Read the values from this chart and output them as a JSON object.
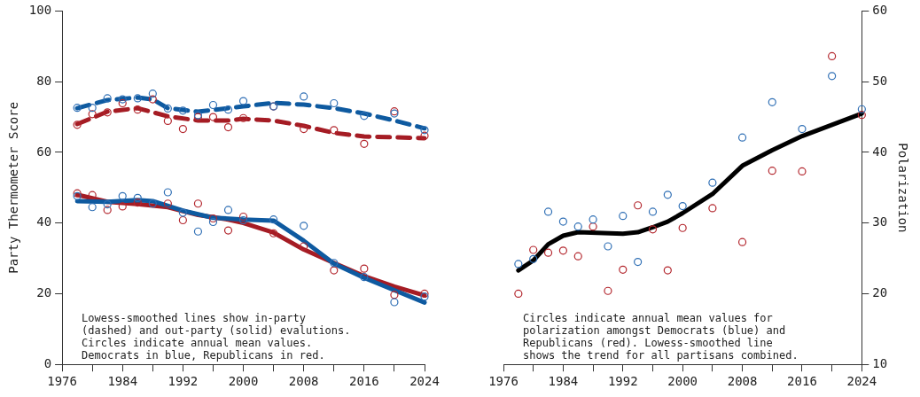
{
  "chart_data": [
    {
      "type": "scatter",
      "ylabel": "Party Thermometer Score",
      "xlim": [
        1976,
        2024
      ],
      "ylim": [
        0,
        100
      ],
      "xticks": [
        1976,
        {
          "value": 1980,
          "label": null
        },
        1984,
        {
          "value": 1988,
          "label": null
        },
        1992,
        {
          "value": 1996,
          "label": null
        },
        2000,
        {
          "value": 2004,
          "label": null
        },
        2008,
        {
          "value": 2012,
          "label": null
        },
        2016,
        {
          "value": 2020,
          "label": null
        },
        2024
      ],
      "yticks": [
        0,
        20,
        40,
        60,
        80,
        100
      ],
      "grid": false,
      "legend": false,
      "x": [
        1978,
        1980,
        1982,
        1984,
        1986,
        1988,
        1990,
        1992,
        1994,
        1996,
        1998,
        2000,
        2004,
        2008,
        2012,
        2016,
        2020,
        2024
      ],
      "series": [
        {
          "type": "scatter",
          "marker": "circle",
          "color": "#2f6fb5",
          "values": [
            72.6,
            72.6,
            75.3,
            75,
            75.3,
            76.6,
            72.4,
            71.8,
            70.5,
            73.4,
            72.1,
            74.5,
            73,
            75.8,
            73.9,
            70.3,
            71,
            66.3
          ]
        },
        {
          "type": "scatter",
          "marker": "circle",
          "color": "#b3262d",
          "values": [
            67.8,
            70.8,
            71.3,
            73.9,
            72.1,
            75,
            68.9,
            66.6,
            70,
            70,
            67.1,
            69.7,
            73,
            66.6,
            66.3,
            62.4,
            71.6,
            64.7
          ]
        },
        {
          "type": "scatter",
          "marker": "circle",
          "color": "#2f6fb5",
          "values": [
            47.6,
            44.5,
            45.3,
            47.6,
            47.1,
            45.5,
            48.7,
            42.9,
            37.6,
            40.3,
            43.7,
            40.8,
            41,
            39.2,
            28.7,
            24.7,
            17.6,
            19.2
          ]
        },
        {
          "type": "scatter",
          "marker": "circle",
          "color": "#b3262d",
          "values": [
            48.4,
            47.9,
            43.7,
            44.7,
            45.8,
            null,
            45.5,
            40.8,
            45.5,
            41.3,
            37.9,
            41.8,
            37.1,
            33.4,
            26.6,
            27.1,
            19.7,
            20
          ]
        },
        {
          "type": "line",
          "marker": "none",
          "line_style": "dashed",
          "color": "#0e5aa0",
          "x": [
            1978,
            1982,
            1986,
            1988,
            1990,
            1994,
            2000,
            2004,
            2008,
            2012,
            2016,
            2020,
            2024
          ],
          "values": [
            72.5,
            74.8,
            75.5,
            75,
            72.5,
            71.5,
            73,
            74,
            73.5,
            72.5,
            71,
            69,
            66.8
          ]
        },
        {
          "type": "line",
          "marker": "none",
          "line_style": "dashed",
          "color": "#a51c24",
          "x": [
            1978,
            1982,
            1986,
            1990,
            1994,
            1998,
            2000,
            2004,
            2008,
            2012,
            2016,
            2024
          ],
          "values": [
            68,
            71.5,
            72.5,
            70.2,
            69,
            69,
            69.5,
            69,
            67.5,
            65.5,
            64.5,
            64
          ]
        },
        {
          "type": "line",
          "marker": "none",
          "line_style": "solid",
          "color": "#0e5aa0",
          "x": [
            1978,
            1982,
            1986,
            1988,
            1992,
            1996,
            2000,
            2004,
            2008,
            2012,
            2016,
            2020,
            2024
          ],
          "values": [
            46.2,
            46,
            46.5,
            46.2,
            43.5,
            41.5,
            41,
            40.7,
            35,
            28.5,
            24.5,
            21,
            17.5
          ]
        },
        {
          "type": "line",
          "marker": "none",
          "line_style": "solid",
          "color": "#a51c24",
          "x": [
            1978,
            1982,
            1986,
            1990,
            1994,
            1998,
            2000,
            2004,
            2008,
            2012,
            2016,
            2020,
            2024
          ],
          "values": [
            48,
            46,
            45.4,
            44.5,
            42.3,
            41,
            40,
            37.3,
            32.5,
            28.7,
            25,
            22,
            19.5
          ]
        }
      ],
      "annotations": [
        "Lowess-smoothed lines show in-party\n(dashed) and out-party (solid) evalutions.\nCircles indicate annual mean values.\nDemocrats in blue, Republicans in red."
      ]
    },
    {
      "type": "scatter",
      "y2label": "Polarization",
      "xlim": [
        1976,
        2024
      ],
      "y2lim": [
        10,
        60
      ],
      "xticks": [
        1976,
        {
          "value": 1980,
          "label": null
        },
        1984,
        {
          "value": 1988,
          "label": null
        },
        1992,
        {
          "value": 1996,
          "label": null
        },
        2000,
        {
          "value": 2004,
          "label": null
        },
        2008,
        {
          "value": 2012,
          "label": null
        },
        2016,
        {
          "value": 2020,
          "label": null
        },
        2024
      ],
      "y2ticks": [
        10,
        20,
        30,
        40,
        50,
        60
      ],
      "grid": false,
      "legend": false,
      "x": [
        1978,
        1980,
        1982,
        1984,
        1986,
        1988,
        1990,
        1992,
        1994,
        1996,
        1998,
        2000,
        2004,
        2008,
        2012,
        2016,
        2020,
        2024
      ],
      "series": [
        {
          "type": "scatter",
          "axis": "y2",
          "marker": "circle",
          "color": "#2f6fb5",
          "values": [
            24.2,
            24.9,
            31.6,
            30.2,
            29.5,
            30.5,
            26.7,
            31,
            24.5,
            31.6,
            34,
            32.4,
            35.7,
            42.1,
            47.1,
            43.3,
            50.8,
            46.1
          ]
        },
        {
          "type": "scatter",
          "axis": "y2",
          "marker": "circle",
          "color": "#b3262d",
          "values": [
            20,
            26.2,
            25.8,
            26.1,
            25.3,
            29.5,
            20.4,
            23.4,
            32.5,
            29.1,
            23.3,
            29.3,
            32.1,
            27.3,
            37.4,
            37.3,
            53.6,
            45.3
          ]
        },
        {
          "type": "line",
          "axis": "y2",
          "marker": "none",
          "line_style": "solid",
          "color": "#000000",
          "x": [
            1978,
            1980,
            1982,
            1984,
            1986,
            1992,
            1994,
            1996,
            1998,
            2000,
            2004,
            2008,
            2012,
            2016,
            2020,
            2024
          ],
          "values": [
            23.3,
            24.7,
            27,
            28.2,
            28.7,
            28.5,
            28.7,
            29.4,
            30.2,
            31.4,
            34.1,
            38.1,
            40.3,
            42.3,
            43.9,
            45.5
          ]
        }
      ],
      "annotations": [
        "Circles indicate annual mean values for\npolarization amongst Democrats (blue) and\nRepublicans (red). Lowess-smoothed line\nshows the trend for all partisans combined."
      ]
    }
  ]
}
